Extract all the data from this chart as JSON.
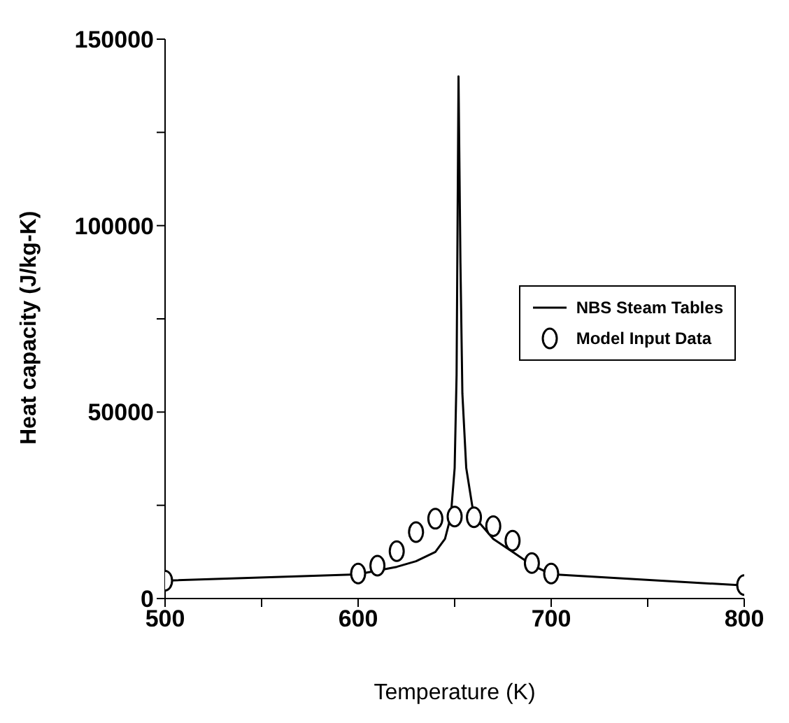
{
  "chart_data": {
    "type": "line",
    "xlabel": "Temperature (K)",
    "ylabel": "Heat capacity (J/kg-K)",
    "xlim": [
      500,
      800
    ],
    "ylim": [
      0,
      150000
    ],
    "xticks": [
      500,
      {
        "value": 550,
        "label": null
      },
      600,
      {
        "value": 650,
        "label": null
      },
      700,
      {
        "value": 750,
        "label": null
      },
      800
    ],
    "yticks": [
      0,
      {
        "value": 25000,
        "label": null
      },
      50000,
      {
        "value": 75000,
        "label": null
      },
      100000,
      {
        "value": 125000,
        "label": null
      },
      150000
    ],
    "grid": false,
    "legend": "right",
    "series": [
      {
        "name": "NBS Steam Tables",
        "color": "#000000",
        "marker": "none",
        "line_style": "solid",
        "x": [
          500,
          600,
          610,
          620,
          630,
          640,
          645,
          648,
          650,
          651,
          652,
          653,
          654,
          656,
          660,
          670,
          680,
          690,
          700,
          800
        ],
        "values": [
          4800,
          6500,
          7500,
          8500,
          10000,
          12500,
          16000,
          22000,
          35000,
          60000,
          140000,
          90000,
          55000,
          35000,
          22000,
          16000,
          12500,
          9000,
          6500,
          3500
        ]
      },
      {
        "name": "Model Input Data",
        "type": "scatter",
        "color": "#000000",
        "marker": "circle",
        "x": [
          500,
          600,
          610,
          620,
          630,
          640,
          650,
          660,
          670,
          680,
          690,
          700,
          800
        ],
        "values": [
          4800,
          6700,
          8800,
          12700,
          17800,
          21400,
          22000,
          21800,
          19400,
          15500,
          9500,
          6700,
          3600
        ]
      }
    ]
  }
}
